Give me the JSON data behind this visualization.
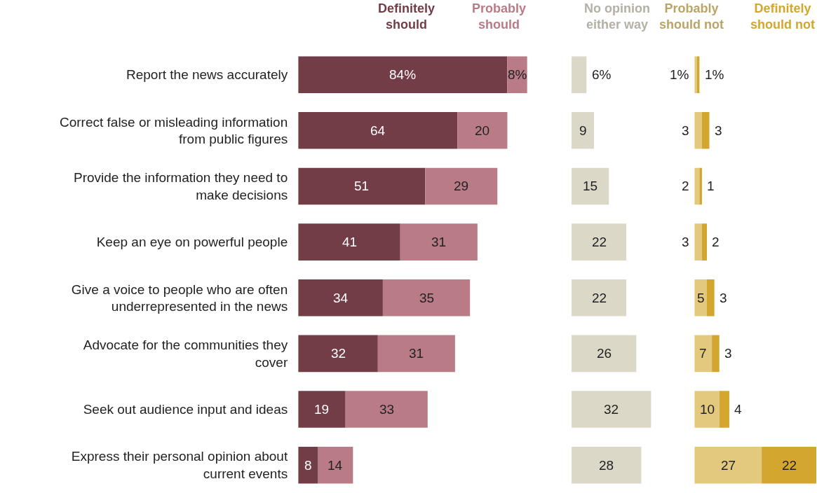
{
  "chart_data": [
    {
      "type": "bar",
      "orientation": "horizontal",
      "stacked": true,
      "tick_labels": "y",
      "xlim": [
        0,
        92
      ],
      "categories": [
        "Report the news accurately",
        "Correct false or misleading information\nfrom public figures",
        "Provide the information they need to\nmake decisions",
        "Keep an eye on powerful people",
        "Give a voice to people who are often\nunderrepresented in the news",
        "Advocate for the communities they\ncover",
        "Seek out audience input and ideas",
        "Express their personal opinion about\ncurrent events"
      ],
      "series": [
        {
          "name": "Definitely\nshould",
          "color": "#733d47",
          "values": [
            84,
            64,
            51,
            41,
            34,
            32,
            19,
            8
          ],
          "value_labels": [
            "84%",
            "64",
            "51",
            "41",
            "34",
            "32",
            "19",
            "8"
          ]
        },
        {
          "name": "Probably\nshould",
          "color": "#b97c86",
          "values": [
            8,
            20,
            29,
            31,
            35,
            31,
            33,
            14
          ],
          "value_labels": [
            "8%",
            "20",
            "29",
            "31",
            "35",
            "31",
            "33",
            "14"
          ]
        }
      ]
    },
    {
      "type": "bar",
      "orientation": "horizontal",
      "tick_labels": false,
      "xlim": [
        0,
        32
      ],
      "categories": [
        null,
        null,
        null,
        null,
        null,
        null,
        null,
        null
      ],
      "series": [
        {
          "name": "No opinion\neither way",
          "color": "#dcd8c8",
          "values": [
            6,
            9,
            15,
            22,
            22,
            26,
            32,
            28
          ],
          "value_labels": [
            "6%",
            "9",
            "15",
            "22",
            "22",
            "26",
            "32",
            "28"
          ]
        }
      ]
    },
    {
      "type": "bar",
      "orientation": "horizontal",
      "stacked": true,
      "tick_labels": false,
      "xlim": [
        0,
        49
      ],
      "categories": [
        null,
        null,
        null,
        null,
        null,
        null,
        null,
        null
      ],
      "series": [
        {
          "name": "Probably\nshould not",
          "color": "#e3c97e",
          "values": [
            1,
            3,
            2,
            3,
            5,
            7,
            10,
            27
          ],
          "value_labels": [
            "1%",
            "3",
            "2",
            "3",
            "5",
            "7",
            "10",
            "27"
          ]
        },
        {
          "name": "Definitely\nshould not",
          "color": "#d3a72f",
          "values": [
            1,
            3,
            1,
            2,
            3,
            3,
            4,
            22
          ],
          "value_labels": [
            "1%",
            "3",
            "1",
            "2",
            "3",
            "3",
            "4",
            "22"
          ]
        }
      ]
    }
  ]
}
